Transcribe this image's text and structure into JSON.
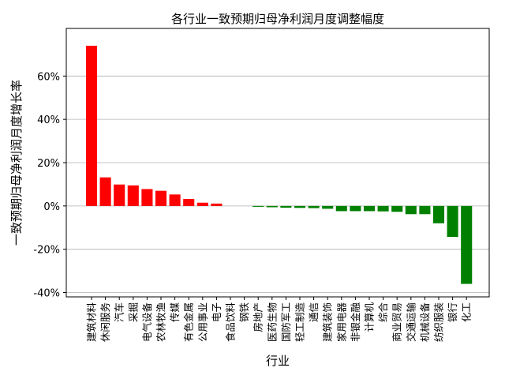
{
  "chart_data": {
    "type": "bar",
    "title": "各行业一致预期归母净利润月度调整幅度",
    "xlabel": "行业",
    "ylabel": "一致预期归母净利润月度增长率",
    "ylim": [
      -42,
      82
    ],
    "yticks": [
      -40,
      -20,
      0,
      20,
      40,
      60
    ],
    "ytick_labels": [
      "-40%",
      "-20%",
      "0%",
      "20%",
      "40%",
      "60%"
    ],
    "grid": "y-major",
    "positive_color": "#ff0000",
    "negative_color": "#008000",
    "categories": [
      "建筑材料",
      "休闲服务",
      "汽车",
      "采掘",
      "电气设备",
      "农林牧渔",
      "传媒",
      "有色金属",
      "公用事业",
      "电子",
      "食品饮料",
      "钢铁",
      "房地产",
      "医药生物",
      "国防军工",
      "轻工制造",
      "通信",
      "建筑装饰",
      "家用电器",
      "非银金融",
      "计算机",
      "综合",
      "商业贸易",
      "交通运输",
      "机械设备",
      "纺织服装",
      "银行",
      "化工"
    ],
    "values": [
      74.0,
      13.2,
      9.9,
      9.5,
      7.8,
      7.0,
      5.3,
      3.2,
      1.5,
      1.1,
      0.0,
      0.0,
      -0.4,
      -0.6,
      -0.8,
      -0.9,
      -1.0,
      -1.3,
      -2.4,
      -2.4,
      -2.4,
      -2.5,
      -2.7,
      -3.8,
      -3.8,
      -8.0,
      -14.3,
      -36.0
    ]
  }
}
